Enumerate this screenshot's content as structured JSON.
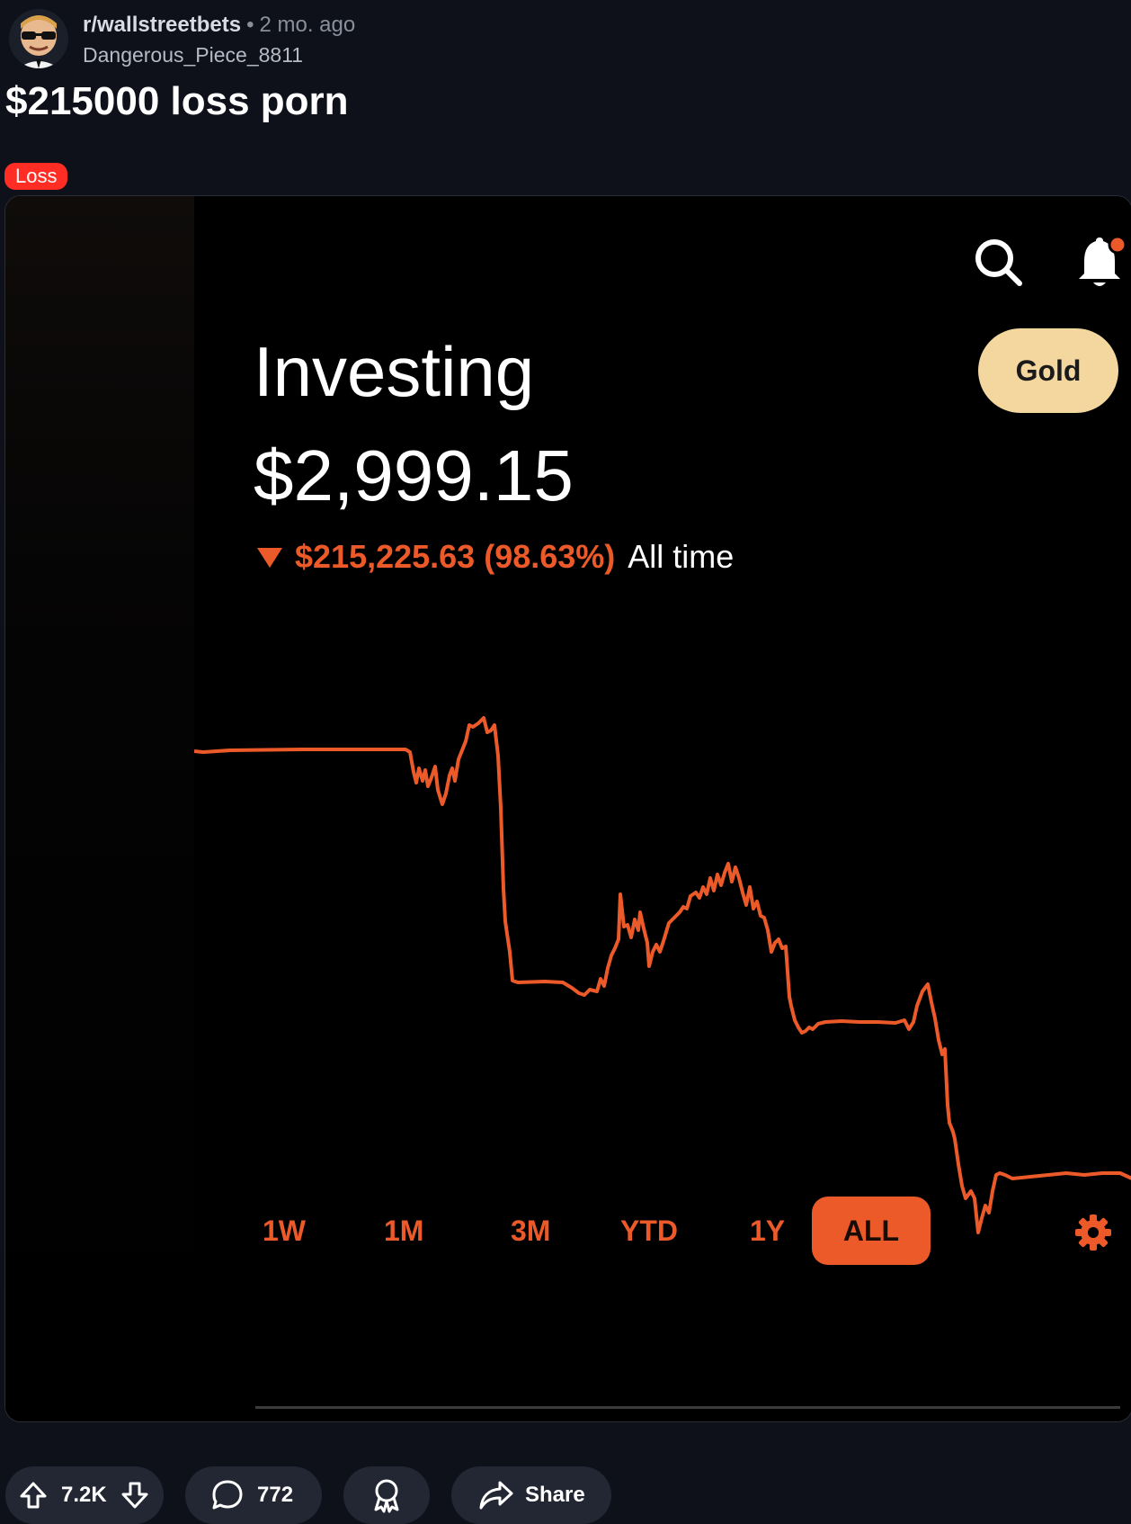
{
  "post": {
    "subreddit": "r/wallstreetbets",
    "separator": "•",
    "age": "2 mo. ago",
    "author": "Dangerous_Piece_8811",
    "title": "$215000 loss porn",
    "flair": "Loss"
  },
  "app": {
    "section_title": "Investing",
    "portfolio_value": "$2,999.15",
    "change_arrow": "▼",
    "change_value": "$215,225.63 (98.63%)",
    "change_period": "All time",
    "gold_label": "Gold",
    "notification_dot": true,
    "ranges": [
      "1W",
      "1M",
      "3M",
      "YTD",
      "1Y",
      "ALL"
    ],
    "active_range": "ALL",
    "accent_color": "#ec5a29",
    "gold_color": "#f3d79e"
  },
  "actions": {
    "upvotes": "7.2K",
    "comments": "772",
    "share_label": "Share"
  },
  "icons": [
    "avatar",
    "search-icon",
    "bell-icon",
    "settings-icon",
    "upvote-icon",
    "downvote-icon",
    "comment-icon",
    "award-icon",
    "share-icon"
  ]
}
